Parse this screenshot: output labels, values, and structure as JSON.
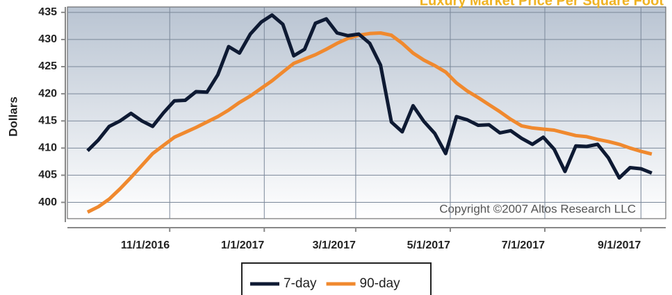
{
  "chart_data": {
    "type": "line",
    "title": "Luxury Market Price Per Square Foot",
    "ylabel": "Dollars",
    "annotation": "Copyright ©2007 Altos Research LLC",
    "x": [
      "2016-09-09",
      "2016-09-16",
      "2016-09-23",
      "2016-09-30",
      "2016-10-07",
      "2016-10-14",
      "2016-10-21",
      "2016-10-28",
      "2016-11-04",
      "2016-11-11",
      "2016-11-18",
      "2016-11-25",
      "2016-12-02",
      "2016-12-09",
      "2016-12-16",
      "2016-12-23",
      "2016-12-30",
      "2017-01-06",
      "2017-01-13",
      "2017-01-20",
      "2017-01-27",
      "2017-02-03",
      "2017-02-10",
      "2017-02-17",
      "2017-02-24",
      "2017-03-03",
      "2017-03-10",
      "2017-03-17",
      "2017-03-24",
      "2017-03-31",
      "2017-04-07",
      "2017-04-14",
      "2017-04-21",
      "2017-04-28",
      "2017-05-05",
      "2017-05-12",
      "2017-05-19",
      "2017-05-26",
      "2017-06-02",
      "2017-06-09",
      "2017-06-16",
      "2017-06-23",
      "2017-06-30",
      "2017-07-07",
      "2017-07-14",
      "2017-07-21",
      "2017-07-28",
      "2017-08-04",
      "2017-08-11",
      "2017-08-18",
      "2017-08-25",
      "2017-09-01",
      "2017-09-08"
    ],
    "series": [
      {
        "name": "7-day",
        "color": "#0e1a33",
        "values": [
          409.5,
          411.5,
          414,
          415,
          416.4,
          415,
          414,
          416.5,
          418.7,
          418.8,
          420.4,
          420.3,
          423.5,
          428.7,
          427.5,
          431,
          433.2,
          434.5,
          432.8,
          427,
          428.2,
          433,
          433.8,
          431.2,
          430.7,
          431,
          429.3,
          425.3,
          414.8,
          413,
          417.8,
          414.9,
          412.7,
          409,
          415.8,
          415.2,
          414.2,
          414.3,
          412.8,
          413.2,
          411.8,
          410.7,
          412,
          409.8,
          405.7,
          410.4,
          410.3,
          410.7,
          408.2,
          404.5,
          406.4,
          406.2,
          405.4
        ]
      },
      {
        "name": "90-day",
        "color": "#f0892e",
        "values": [
          398.2,
          399.2,
          400.6,
          402.5,
          404.6,
          406.8,
          409,
          410.5,
          412,
          412.9,
          413.8,
          414.8,
          415.8,
          417,
          418.4,
          419.6,
          421,
          422.4,
          424,
          425.6,
          426.4,
          427.2,
          428.2,
          429.3,
          430.2,
          430.8,
          431.1,
          431.2,
          430.8,
          429.3,
          427.5,
          426.2,
          425.2,
          424,
          422,
          420.5,
          419.3,
          418,
          416.7,
          415.3,
          414.1,
          413.7,
          413.5,
          413.3,
          412.8,
          412.3,
          412.1,
          411.6,
          411.2,
          410.7,
          410,
          409.4,
          408.9
        ]
      }
    ],
    "xlim": [
      "2016-08-27",
      "2017-09-17"
    ],
    "xticks": [
      {
        "value": "2016-11-01",
        "label": "11/1/2016"
      },
      {
        "value": "2017-01-01",
        "label": "1/1/2017"
      },
      {
        "value": "2017-03-01",
        "label": "3/1/2017"
      },
      {
        "value": "2017-05-01",
        "label": "5/1/2017"
      },
      {
        "value": "2017-07-01",
        "label": "7/1/2017"
      },
      {
        "value": "2017-09-01",
        "label": "9/1/2017"
      }
    ],
    "ylim": [
      397,
      436
    ],
    "yticks": [
      400,
      405,
      410,
      415,
      420,
      425,
      430,
      435
    ],
    "grid": true
  }
}
